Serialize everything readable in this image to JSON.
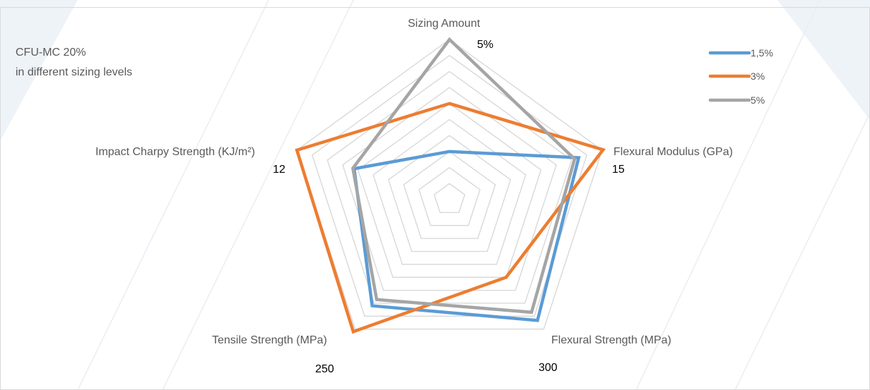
{
  "colors": {
    "blue": "#5b9bd5",
    "orange": "#ed7d31",
    "gray": "#a5a5a5",
    "grid": "#d6d6d6",
    "text": "#595959"
  },
  "chart_data": {
    "type": "radar",
    "title": "",
    "annotation_lines": [
      "CFU-MC 20%",
      "in different sizing levels"
    ],
    "axes": [
      {
        "label": "Sizing Amount",
        "max_label": "5%"
      },
      {
        "label": "Flexural Modulus (GPa)",
        "max_label": "15"
      },
      {
        "label": "Flexural Strength (MPa)",
        "max_label": "300"
      },
      {
        "label": "Tensile Strength (MPa)",
        "max_label": "250"
      },
      {
        "label": "Impact Charpy Strength (KJ/m²)",
        "max_label": "12"
      }
    ],
    "axis_max": [
      5,
      15,
      300,
      250,
      12
    ],
    "grid_levels": 10,
    "legend_position": "top-right",
    "grid": true,
    "series": [
      {
        "name": "1,5%",
        "color": "#5b9bd5",
        "values": [
          1.5,
          12.7,
          280,
          205,
          7.5
        ]
      },
      {
        "name": "3%",
        "color": "#ed7d31",
        "values": [
          3.0,
          15.1,
          180,
          255,
          12.0
        ]
      },
      {
        "name": "5%",
        "color": "#a5a5a5",
        "values": [
          5.0,
          12.3,
          261,
          193,
          7.6
        ]
      }
    ]
  }
}
